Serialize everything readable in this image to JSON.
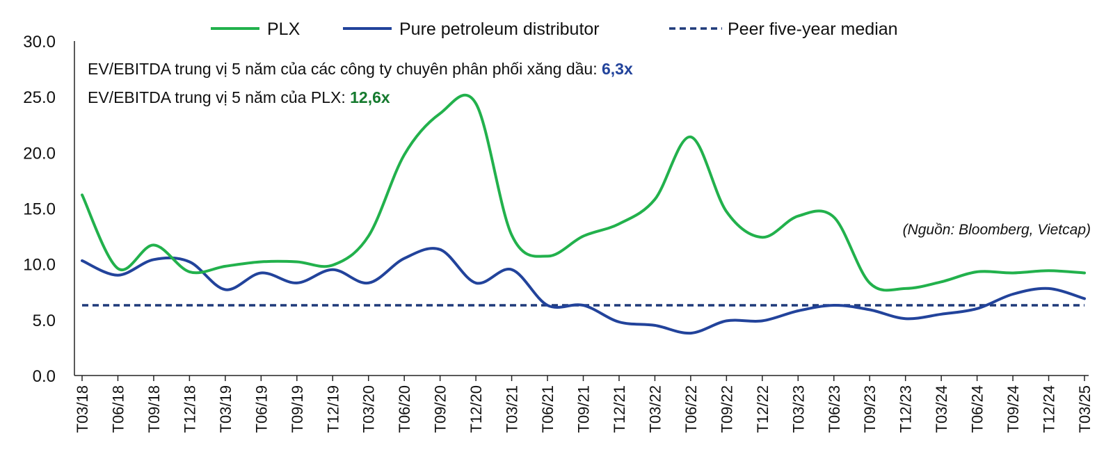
{
  "chart_data": {
    "type": "line",
    "x": [
      "T03/18",
      "T06/18",
      "T09/18",
      "T12/18",
      "T03/19",
      "T06/19",
      "T09/19",
      "T12/19",
      "T03/20",
      "T06/20",
      "T09/20",
      "T12/20",
      "T03/21",
      "T06/21",
      "T09/21",
      "T12/21",
      "T03/22",
      "T06/22",
      "T09/22",
      "T12/22",
      "T03/23",
      "T06/23",
      "T09/23",
      "T12/23",
      "T03/24",
      "T06/24",
      "T09/24",
      "T12/24",
      "T03/25"
    ],
    "series": [
      {
        "name": "PLX",
        "color": "#22b14c",
        "style": "solid",
        "values": [
          16.2,
          9.6,
          11.7,
          9.3,
          9.8,
          10.2,
          10.2,
          9.9,
          12.5,
          19.8,
          23.5,
          24.4,
          12.6,
          10.7,
          12.5,
          13.6,
          15.8,
          21.4,
          14.7,
          12.4,
          14.3,
          14.2,
          8.3,
          7.8,
          8.4,
          9.3,
          9.2,
          9.4,
          9.2
        ]
      },
      {
        "name": "Pure petroleum distributor",
        "color": "#22439b",
        "style": "solid",
        "values": [
          10.3,
          9.0,
          10.4,
          10.2,
          7.7,
          9.2,
          8.3,
          9.5,
          8.3,
          10.5,
          11.3,
          8.3,
          9.5,
          6.3,
          6.3,
          4.8,
          4.5,
          3.8,
          4.9,
          4.9,
          5.8,
          6.3,
          5.9,
          5.1,
          5.5,
          6.0,
          7.3,
          7.8,
          6.9
        ]
      },
      {
        "name": "Peer five-year median",
        "color": "#1f3a7a",
        "style": "dashed",
        "values": [
          6.3,
          6.3,
          6.3,
          6.3,
          6.3,
          6.3,
          6.3,
          6.3,
          6.3,
          6.3,
          6.3,
          6.3,
          6.3,
          6.3,
          6.3,
          6.3,
          6.3,
          6.3,
          6.3,
          6.3,
          6.3,
          6.3,
          6.3,
          6.3,
          6.3,
          6.3,
          6.3,
          6.3,
          6.3
        ]
      }
    ],
    "yticks": [
      "0.0",
      "5.0",
      "10.0",
      "15.0",
      "20.0",
      "25.0",
      "30.0"
    ],
    "ylim": [
      0,
      30
    ],
    "grid": false,
    "legend_position": "top"
  },
  "annotations": {
    "line1_text": "EV/EBITDA trung vị 5 năm của các công ty chuyên phân phối xăng dầu: ",
    "line1_value": "6,3x",
    "line1_value_color": "#22439b",
    "line2_text": "EV/EBITDA trung vị 5 năm của PLX: ",
    "line2_value": "12,6x",
    "line2_value_color": "#157a2e",
    "source": "(Nguồn: Bloomberg, Vietcap)"
  }
}
